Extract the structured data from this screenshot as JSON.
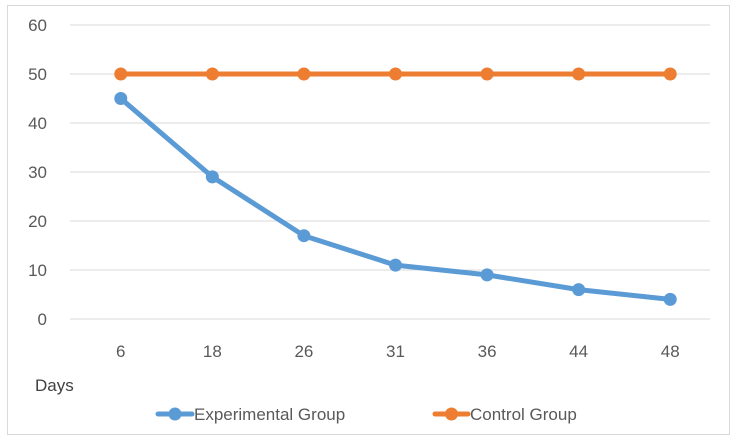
{
  "chart_data": {
    "type": "line",
    "categories": [
      "6",
      "18",
      "26",
      "31",
      "36",
      "44",
      "48"
    ],
    "series": [
      {
        "name": "Experimental Group",
        "values": [
          45,
          29,
          17,
          11,
          9,
          6,
          4
        ],
        "color": "#5b9bd5"
      },
      {
        "name": "Control Group",
        "values": [
          50,
          50,
          50,
          50,
          50,
          50,
          50
        ],
        "color": "#ed7d31"
      }
    ],
    "title": "",
    "xlabel": "Days",
    "ylabel": "",
    "ylim": [
      0,
      60
    ],
    "yticks": [
      0,
      10,
      20,
      30,
      40,
      50,
      60
    ],
    "grid": true,
    "legend": "bottom",
    "gridline_color": "#d9d9d9"
  }
}
